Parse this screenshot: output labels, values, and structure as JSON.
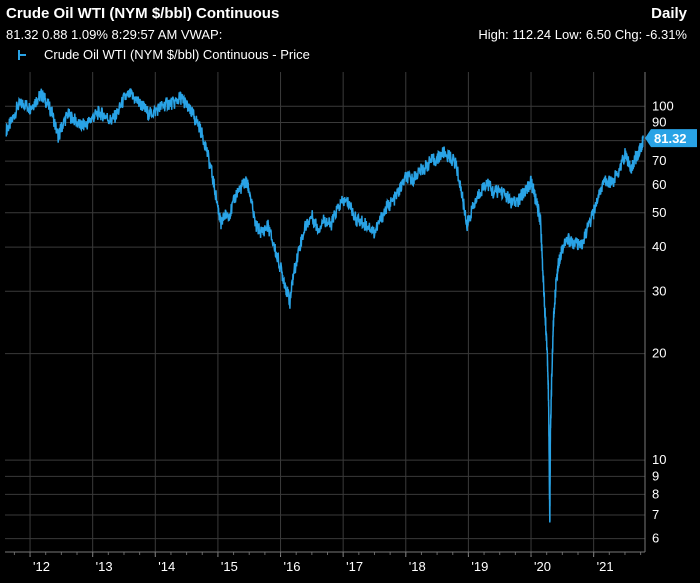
{
  "header": {
    "title": "Crude Oil WTI (NYM $/bbl) Continuous",
    "frequency": "Daily",
    "quote": "81.32 0.88 1.09% 8:29:57 AM VWAP:",
    "stats": "High: 112.24 Low: 6.50 Chg: -6.31%"
  },
  "legend": {
    "label": "Crude Oil WTI (NYM $/bbl) Continuous - Price"
  },
  "colors": {
    "series": "#29a3e6",
    "grid": "#3a3a3a",
    "background": "#000000"
  },
  "chart_data": {
    "type": "line",
    "title": "Crude Oil WTI (NYM $/bbl) Continuous",
    "yscale": "log",
    "ylim": [
      5.5,
      125
    ],
    "xlim": [
      2011.6,
      2021.82
    ],
    "x_tick_values": [
      2012,
      2013,
      2014,
      2015,
      2016,
      2017,
      2018,
      2019,
      2020,
      2021
    ],
    "x_tick_labels": [
      "'12",
      "'13",
      "'14",
      "'15",
      "'16",
      "'17",
      "'18",
      "'19",
      "'20",
      "'21"
    ],
    "y_ticks": [
      6,
      7,
      8,
      9,
      10,
      20,
      30,
      40,
      50,
      60,
      70,
      80,
      90,
      100
    ],
    "last_value_label": "81.32",
    "series": [
      {
        "name": "Crude Oil WTI (NYM $/bbl) Continuous - Price",
        "x": [
          2011.62,
          2011.7,
          2011.8,
          2011.9,
          2012.0,
          2012.1,
          2012.18,
          2012.25,
          2012.35,
          2012.45,
          2012.5,
          2012.6,
          2012.7,
          2012.8,
          2012.9,
          2013.0,
          2013.1,
          2013.2,
          2013.3,
          2013.4,
          2013.5,
          2013.6,
          2013.7,
          2013.8,
          2013.9,
          2014.0,
          2014.1,
          2014.2,
          2014.3,
          2014.4,
          2014.45,
          2014.55,
          2014.6,
          2014.7,
          2014.8,
          2014.9,
          2015.0,
          2015.05,
          2015.1,
          2015.2,
          2015.3,
          2015.4,
          2015.45,
          2015.5,
          2015.6,
          2015.7,
          2015.8,
          2015.9,
          2016.0,
          2016.08,
          2016.15,
          2016.2,
          2016.3,
          2016.4,
          2016.5,
          2016.6,
          2016.7,
          2016.8,
          2016.9,
          2017.0,
          2017.1,
          2017.2,
          2017.3,
          2017.4,
          2017.5,
          2017.6,
          2017.7,
          2017.8,
          2017.9,
          2018.0,
          2018.1,
          2018.2,
          2018.3,
          2018.4,
          2018.5,
          2018.6,
          2018.7,
          2018.8,
          2018.9,
          2018.98,
          2019.0,
          2019.1,
          2019.2,
          2019.3,
          2019.4,
          2019.5,
          2019.6,
          2019.7,
          2019.8,
          2019.9,
          2020.0,
          2020.05,
          2020.1,
          2020.15,
          2020.2,
          2020.23,
          2020.26,
          2020.28,
          2020.3,
          2020.31,
          2020.33,
          2020.36,
          2020.4,
          2020.45,
          2020.5,
          2020.6,
          2020.7,
          2020.8,
          2020.9,
          2021.0,
          2021.1,
          2021.2,
          2021.3,
          2021.4,
          2021.5,
          2021.55,
          2021.6,
          2021.65,
          2021.7,
          2021.75,
          2021.79
        ],
        "values": [
          86,
          90,
          100,
          102,
          99,
          104,
          108,
          104,
          96,
          82,
          87,
          95,
          92,
          88,
          89,
          93,
          96,
          94,
          91,
          96,
          105,
          108,
          104,
          100,
          95,
          97,
          100,
          102,
          102,
          106,
          104,
          97,
          95,
          88,
          78,
          65,
          52,
          46,
          49,
          50,
          57,
          60,
          61,
          58,
          46,
          44,
          46,
          40,
          35,
          31,
          28,
          33,
          40,
          46,
          49,
          45,
          48,
          46,
          51,
          54,
          53,
          48,
          47,
          46,
          44,
          48,
          52,
          54,
          58,
          63,
          62,
          65,
          67,
          70,
          71,
          74,
          72,
          69,
          56,
          46,
          48,
          53,
          58,
          61,
          57,
          58,
          56,
          53,
          54,
          58,
          61,
          57,
          52,
          48,
          31,
          25,
          20,
          15,
          6.5,
          12,
          17,
          25,
          32,
          37,
          40,
          42,
          41,
          40,
          45,
          50,
          58,
          62,
          61,
          66,
          73,
          70,
          67,
          70,
          73,
          76,
          81.32
        ]
      }
    ]
  }
}
